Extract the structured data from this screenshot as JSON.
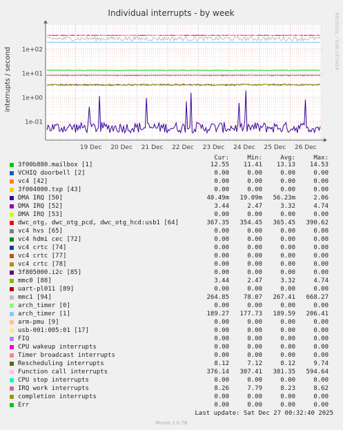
{
  "chart_data": {
    "type": "line",
    "title": "Individual interrupts - by week",
    "ylabel": "interrupts / second",
    "watermark": "RRDTOOL / TOBI OETIKER",
    "y_scale": "log",
    "ylim": [
      0.017,
      1000
    ],
    "y_ticks": [
      {
        "value": 0.1,
        "label": "1e-01"
      },
      {
        "value": 1,
        "label": "1e+00"
      },
      {
        "value": 10,
        "label": "1e+01"
      },
      {
        "value": 100,
        "label": "1e+02"
      }
    ],
    "x_range": [
      "2025-12-18T00:30",
      "2025-12-27T00:30"
    ],
    "x_ticks": [
      {
        "date": "2025-12-19T12:00",
        "label": "19 Dec"
      },
      {
        "date": "2025-12-20T12:00",
        "label": "20 Dec"
      },
      {
        "date": "2025-12-21T12:00",
        "label": "21 Dec"
      },
      {
        "date": "2025-12-22T12:00",
        "label": "22 Dec"
      },
      {
        "date": "2025-12-23T12:00",
        "label": "23 Dec"
      },
      {
        "date": "2025-12-24T12:00",
        "label": "24 Dec"
      },
      {
        "date": "2025-12-25T12:00",
        "label": "25 Dec"
      },
      {
        "date": "2025-12-26T12:00",
        "label": "26 Dec"
      }
    ],
    "grid": true,
    "legend_placement": "bottom",
    "legend_headers": {
      "cur": "Cur:",
      "min": "Min:",
      "avg": "Avg:",
      "max": "Max:"
    },
    "series": [
      {
        "name": "3f00b880.mailbox [1]",
        "color": "#00cc00",
        "cur": "12.55",
        "min": "11.41",
        "avg": "13.13",
        "max": "14.53"
      },
      {
        "name": "VCHIQ doorbell [2]",
        "color": "#0066b3",
        "cur": "0.00",
        "min": "0.00",
        "avg": "0.00",
        "max": "0.00"
      },
      {
        "name": "vc4 [42]",
        "color": "#ff8000",
        "cur": "0.00",
        "min": "0.00",
        "avg": "0.00",
        "max": "0.00"
      },
      {
        "name": "3f004000.txp [43]",
        "color": "#ffcc00",
        "cur": "0.00",
        "min": "0.00",
        "avg": "0.00",
        "max": "0.00"
      },
      {
        "name": "DMA IRQ [50]",
        "color": "#330099",
        "cur": "40.49m",
        "min": "19.09m",
        "avg": "56.23m",
        "max": "2.06"
      },
      {
        "name": "DMA IRQ [52]",
        "color": "#990099",
        "cur": "3.44",
        "min": "2.47",
        "avg": "3.32",
        "max": "4.74"
      },
      {
        "name": "DMA IRQ [53]",
        "color": "#ccff00",
        "cur": "0.00",
        "min": "0.00",
        "avg": "0.00",
        "max": "0.00"
      },
      {
        "name": "dwc_otg, dwc_otg_pcd, dwc_otg_hcd:usb1 [64]",
        "color": "#ff0000",
        "cur": "367.35",
        "min": "354.45",
        "avg": "365.45",
        "max": "390.62"
      },
      {
        "name": "vc4 hvs [65]",
        "color": "#808080",
        "cur": "0.00",
        "min": "0.00",
        "avg": "0.00",
        "max": "0.00"
      },
      {
        "name": "vc4 hdmi cec [72]",
        "color": "#008f00",
        "cur": "0.00",
        "min": "0.00",
        "avg": "0.00",
        "max": "0.00"
      },
      {
        "name": "vc4 crtc [74]",
        "color": "#00487d",
        "cur": "0.00",
        "min": "0.00",
        "avg": "0.00",
        "max": "0.00"
      },
      {
        "name": "vc4 crtc [77]",
        "color": "#b35a00",
        "cur": "0.00",
        "min": "0.00",
        "avg": "0.00",
        "max": "0.00"
      },
      {
        "name": "vc4 crtc [78]",
        "color": "#b38f00",
        "cur": "0.00",
        "min": "0.00",
        "avg": "0.00",
        "max": "0.00"
      },
      {
        "name": "3f805000.i2c [85]",
        "color": "#6b006b",
        "cur": "0.00",
        "min": "0.00",
        "avg": "0.00",
        "max": "0.00"
      },
      {
        "name": "mmc0 [88]",
        "color": "#8fb300",
        "cur": "3.44",
        "min": "2.47",
        "avg": "3.32",
        "max": "4.74"
      },
      {
        "name": "uart-pl011 [89]",
        "color": "#b30000",
        "cur": "0.00",
        "min": "0.00",
        "avg": "0.00",
        "max": "0.00"
      },
      {
        "name": "mmc1 [94]",
        "color": "#bebebe",
        "cur": "264.85",
        "min": "78.07",
        "avg": "267.41",
        "max": "668.27"
      },
      {
        "name": "arch_timer [0]",
        "color": "#80ff80",
        "cur": "0.00",
        "min": "0.00",
        "avg": "0.00",
        "max": "0.00"
      },
      {
        "name": "arch_timer [1]",
        "color": "#80c9ff",
        "cur": "189.27",
        "min": "177.73",
        "avg": "189.59",
        "max": "206.41"
      },
      {
        "name": "arm-pmu [9]",
        "color": "#ffc080",
        "cur": "0.00",
        "min": "0.00",
        "avg": "0.00",
        "max": "0.00"
      },
      {
        "name": "usb-001:005:01 [17]",
        "color": "#ffe680",
        "cur": "0.00",
        "min": "0.00",
        "avg": "0.00",
        "max": "0.00"
      },
      {
        "name": "FIQ",
        "color": "#aa80ff",
        "cur": "0.00",
        "min": "0.00",
        "avg": "0.00",
        "max": "0.00"
      },
      {
        "name": "CPU wakeup interrupts",
        "color": "#ee00cc",
        "cur": "0.00",
        "min": "0.00",
        "avg": "0.00",
        "max": "0.00"
      },
      {
        "name": "Timer broadcast interrupts",
        "color": "#ff8080",
        "cur": "0.00",
        "min": "0.00",
        "avg": "0.00",
        "max": "0.00"
      },
      {
        "name": "Rescheduling interrupts",
        "color": "#666600",
        "cur": "8.12",
        "min": "7.12",
        "avg": "8.12",
        "max": "9.74"
      },
      {
        "name": "Function call interrupts",
        "color": "#ffbfff",
        "cur": "376.14",
        "min": "307.41",
        "avg": "381.35",
        "max": "594.64"
      },
      {
        "name": "CPU stop interrupts",
        "color": "#00ffcc",
        "cur": "0.00",
        "min": "0.00",
        "avg": "0.00",
        "max": "0.00"
      },
      {
        "name": "IRQ work interrupts",
        "color": "#cc6699",
        "cur": "8.26",
        "min": "7.79",
        "avg": "8.23",
        "max": "8.62"
      },
      {
        "name": "completion interrupts",
        "color": "#999900",
        "cur": "0.00",
        "min": "0.00",
        "avg": "0.00",
        "max": "0.00"
      },
      {
        "name": "Err",
        "color": "#00cc00",
        "cur": "0.00",
        "min": "0.00",
        "avg": "0.00",
        "max": "0.00"
      }
    ]
  },
  "footer": {
    "last_update": "Last update: Sat Dec 27 00:32:40 2025",
    "version": "Munin 2.0.76"
  }
}
